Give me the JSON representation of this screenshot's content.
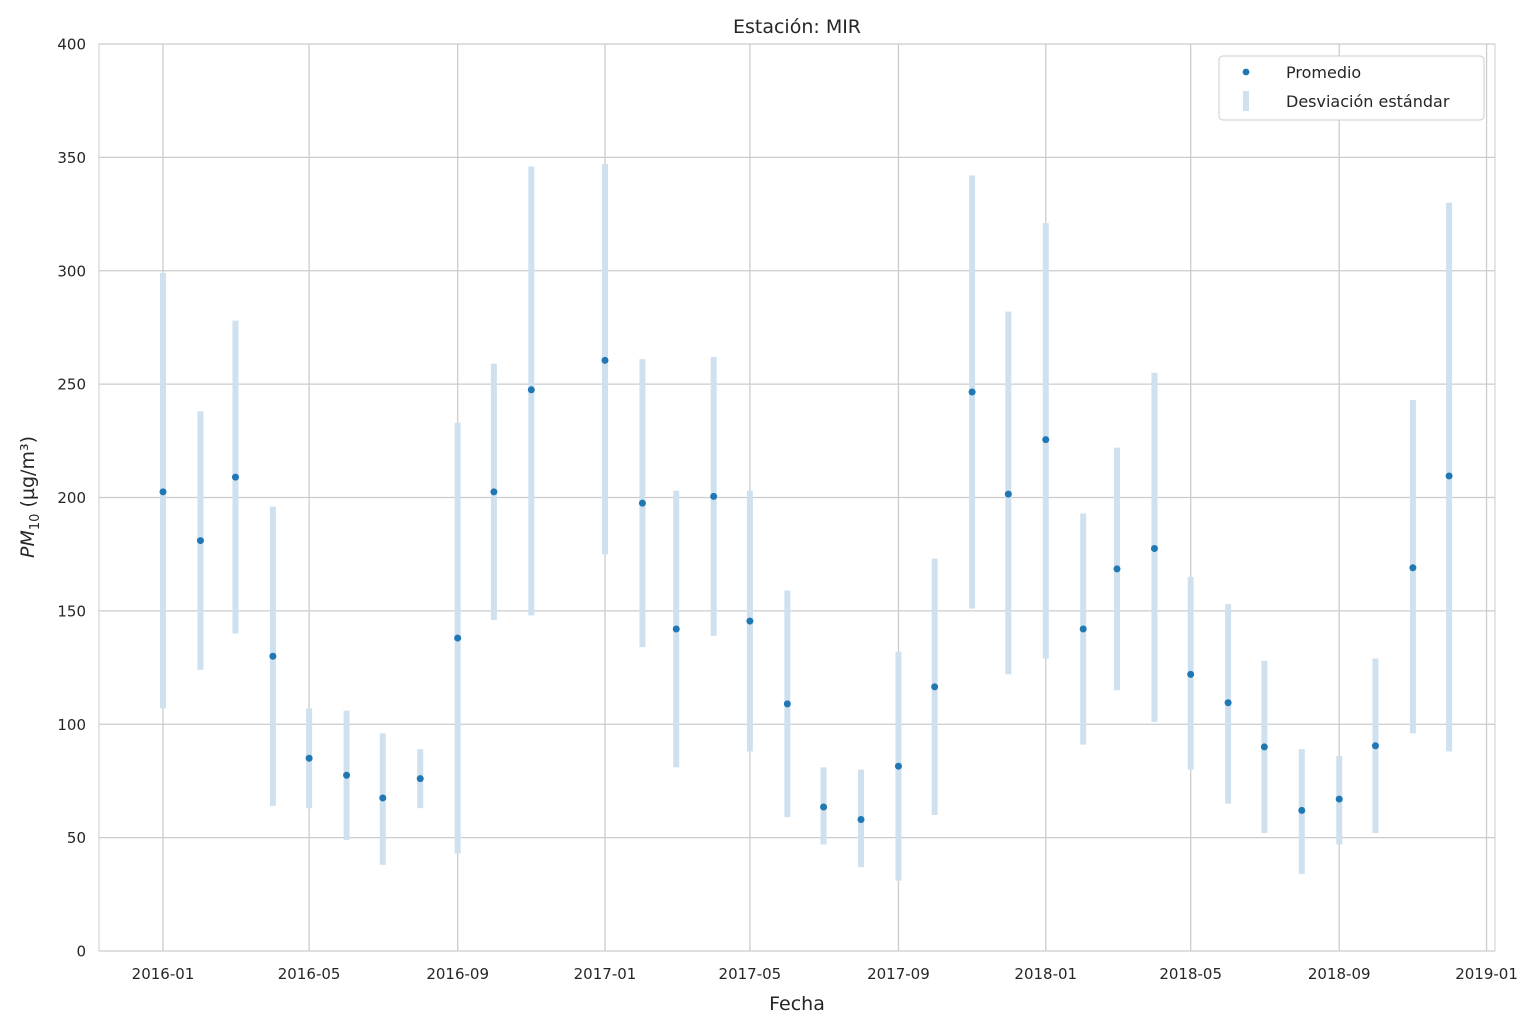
{
  "chart_data": {
    "type": "scatter",
    "title": "Estación: MIR",
    "xlabel": "Fecha",
    "ylabel": {
      "prefix": "PM",
      "sub": "10",
      "unit": " (µg/m³)"
    },
    "ylim": [
      0,
      400
    ],
    "xlim": [
      "2015-11-09",
      "2019-01-08"
    ],
    "yticks": [
      0,
      50,
      100,
      150,
      200,
      250,
      300,
      350,
      400
    ],
    "xticks": [
      "2016-01",
      "2016-05",
      "2016-09",
      "2017-01",
      "2017-05",
      "2017-09",
      "2018-01",
      "2018-05",
      "2018-09",
      "2019-01"
    ],
    "grid": true,
    "legend": {
      "placement": "top-right",
      "entries": [
        "Promedio",
        "Desviación estándar"
      ]
    },
    "colors": {
      "mean": "#1f77b4",
      "std": "#cfe1ee",
      "grid": "#cccccc",
      "text": "#262626"
    },
    "series": [
      {
        "name": "Promedio",
        "x": [
          "2016-01",
          "2016-02",
          "2016-03",
          "2016-04",
          "2016-05",
          "2016-06",
          "2016-07",
          "2016-08",
          "2016-09",
          "2016-10",
          "2016-11",
          "2017-01",
          "2017-02",
          "2017-03",
          "2017-04",
          "2017-05",
          "2017-06",
          "2017-07",
          "2017-08",
          "2017-09",
          "2017-10",
          "2017-11",
          "2017-12",
          "2018-01",
          "2018-02",
          "2018-03",
          "2018-04",
          "2018-05",
          "2018-06",
          "2018-07",
          "2018-08",
          "2018-09",
          "2018-10",
          "2018-11",
          "2018-12"
        ],
        "y": [
          202.5,
          181,
          209,
          130,
          85,
          77.5,
          67.5,
          76,
          138,
          202.5,
          247.5,
          260.5,
          197.5,
          142,
          200.5,
          145.5,
          109,
          63.5,
          58,
          81.5,
          116.5,
          246.5,
          201.5,
          225.5,
          142,
          168.5,
          177.5,
          122,
          109.5,
          90,
          62,
          67,
          90.5,
          169,
          209.5
        ]
      },
      {
        "name": "Desviación estándar",
        "x": [
          "2016-01",
          "2016-02",
          "2016-03",
          "2016-04",
          "2016-05",
          "2016-06",
          "2016-07",
          "2016-08",
          "2016-09",
          "2016-10",
          "2016-11",
          "2017-01",
          "2017-02",
          "2017-03",
          "2017-04",
          "2017-05",
          "2017-06",
          "2017-07",
          "2017-08",
          "2017-09",
          "2017-10",
          "2017-11",
          "2017-12",
          "2018-01",
          "2018-02",
          "2018-03",
          "2018-04",
          "2018-05",
          "2018-06",
          "2018-07",
          "2018-08",
          "2018-09",
          "2018-10",
          "2018-11",
          "2018-12"
        ],
        "y_low": [
          107,
          124,
          140,
          64,
          63,
          49,
          38,
          63,
          43,
          146,
          148,
          175,
          134,
          81,
          139,
          88,
          59,
          47,
          37,
          31,
          60,
          151,
          122,
          129,
          91,
          115,
          101,
          80,
          65,
          52,
          34,
          47,
          52,
          96,
          88
        ],
        "y_high": [
          299,
          238,
          278,
          196,
          107,
          106,
          96,
          89,
          233,
          259,
          346,
          347,
          261,
          203,
          262,
          203,
          159,
          81,
          80,
          132,
          173,
          342,
          282,
          321,
          193,
          222,
          255,
          165,
          153,
          128,
          89,
          86,
          129,
          243,
          330
        ]
      }
    ]
  }
}
